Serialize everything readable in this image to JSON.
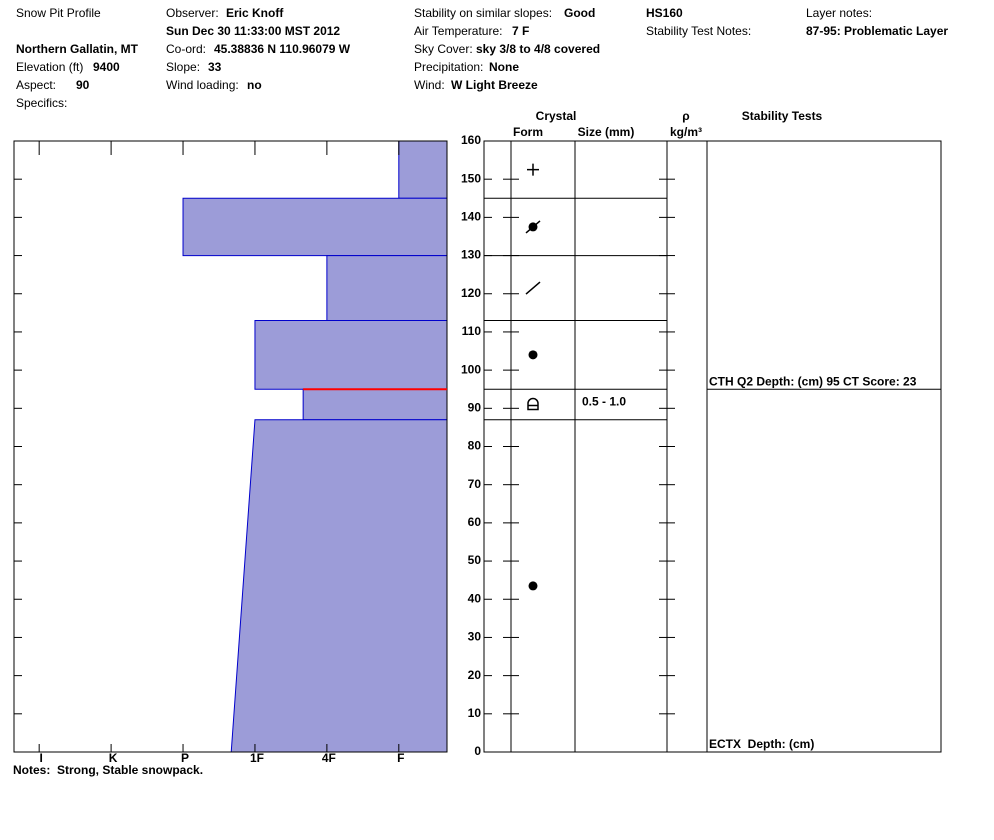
{
  "header": {
    "title": "Snow Pit Profile",
    "location": "Northern Gallatin, MT",
    "date": "Sun Dec 30 11:33:00 MST 2012",
    "hs": "HS160",
    "stability_test_notes": "Stability Test Notes:",
    "layer_notes_label": "Layer notes:",
    "layer_notes": "87-95: Problematic Layer",
    "specifics": "Specifics:",
    "fields": [
      {
        "label": "Elevation (ft)",
        "value": 9400
      },
      {
        "label": "Aspect:",
        "value": 90
      },
      {
        "label": "Observer:",
        "value": "Eric Knoff"
      },
      {
        "label": "Co-ord:",
        "value": "45.38836 N 110.96079 W"
      },
      {
        "label": "Slope:",
        "value": 33
      },
      {
        "label": "Wind loading:",
        "value": "no"
      },
      {
        "label": "Stability on similar slopes:",
        "value": "Good"
      },
      {
        "label": "Air Temperature:",
        "value": "7 F"
      },
      {
        "label": "Sky Cover:",
        "value": "sky 3/8 to 4/8 covered"
      },
      {
        "label": "Precipitation:",
        "value": "None"
      },
      {
        "label": "Wind:",
        "value": "W Light Breeze"
      }
    ],
    "notes": "Notes:  Strong, Stable snowpack."
  },
  "chart_data": {
    "type": "snowpit",
    "columns": {
      "crystal": "Crystal",
      "form": "Form",
      "size": "Size (mm)",
      "density": "ρ",
      "density_unit": "kg/m³",
      "stability": "Stability Tests"
    },
    "layers": [
      {
        "top": 160,
        "bottom": 145,
        "hardness_top": 1,
        "hardness_bottom": 1
      },
      {
        "top": 145,
        "bottom": 130,
        "hardness_top": 4,
        "hardness_bottom": 4
      },
      {
        "top": 130,
        "bottom": 113,
        "hardness_top": 2,
        "hardness_bottom": 2
      },
      {
        "top": 113,
        "bottom": 95,
        "hardness_top": 3,
        "hardness_bottom": 3
      },
      {
        "top": 95,
        "bottom": 87,
        "hardness_top": 2.33,
        "hardness_bottom": 2.33,
        "size": "0.5 - 1.0"
      },
      {
        "top": 87,
        "bottom": 0,
        "hardness_top": 3,
        "hardness_bottom": 3.33
      }
    ],
    "stability_tests": [
      {
        "label": "CTH Q2 Depth: (cm) 95 CT Score: 23",
        "depth": 95
      },
      {
        "label": "ECTX  Depth: (cm)",
        "depth": 0
      }
    ],
    "layer_color": "#9c9cd8",
    "edge_color": "#0000cc",
    "test_color": "#ff0000",
    "xlim": [
      6.35,
      0.33
    ],
    "xticks": [
      {
        "value": 6,
        "label": "I"
      },
      {
        "value": 5,
        "label": "K"
      },
      {
        "value": 4,
        "label": "P"
      },
      {
        "value": 3,
        "label": "1F"
      },
      {
        "value": 2,
        "label": "4F"
      },
      {
        "value": 1,
        "label": "F"
      }
    ],
    "ylim": [
      0,
      160
    ],
    "yticks": [
      0,
      10,
      20,
      30,
      40,
      50,
      60,
      70,
      80,
      90,
      100,
      110,
      120,
      130,
      140,
      150,
      160
    ]
  }
}
